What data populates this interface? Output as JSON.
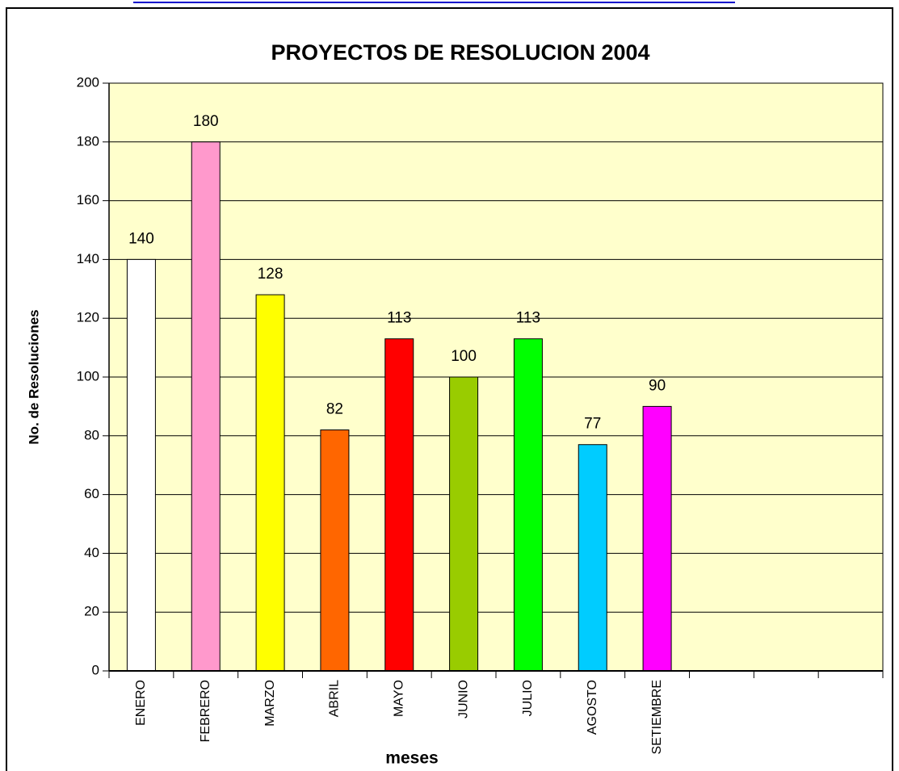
{
  "chart_data": {
    "type": "bar",
    "title": "PROYECTOS DE RESOLUCION  2004",
    "x_label": "meses",
    "y_label": "No. de Resoluciones",
    "categories": [
      "ENERO",
      "FEBRERO",
      "MARZO",
      "ABRIL",
      "MAYO",
      "JUNIO",
      "JULIO",
      "AGOSTO",
      "SETIEMBRE",
      null,
      null,
      null
    ],
    "values": [
      140,
      180,
      128,
      82,
      113,
      100,
      113,
      77,
      90,
      null,
      null,
      null
    ],
    "colors": [
      "#ffffff",
      "#ff99cc",
      "#ffff00",
      "#ff6600",
      "#ff0000",
      "#99cc00",
      "#00ff00",
      "#00ccff",
      "#ff00ff",
      null,
      null,
      null
    ],
    "background": "#ffffcc",
    "ylim": [
      0,
      200
    ],
    "yticks": [
      0,
      20,
      40,
      60,
      80,
      100,
      120,
      140,
      160,
      180,
      200
    ],
    "grid": true
  }
}
